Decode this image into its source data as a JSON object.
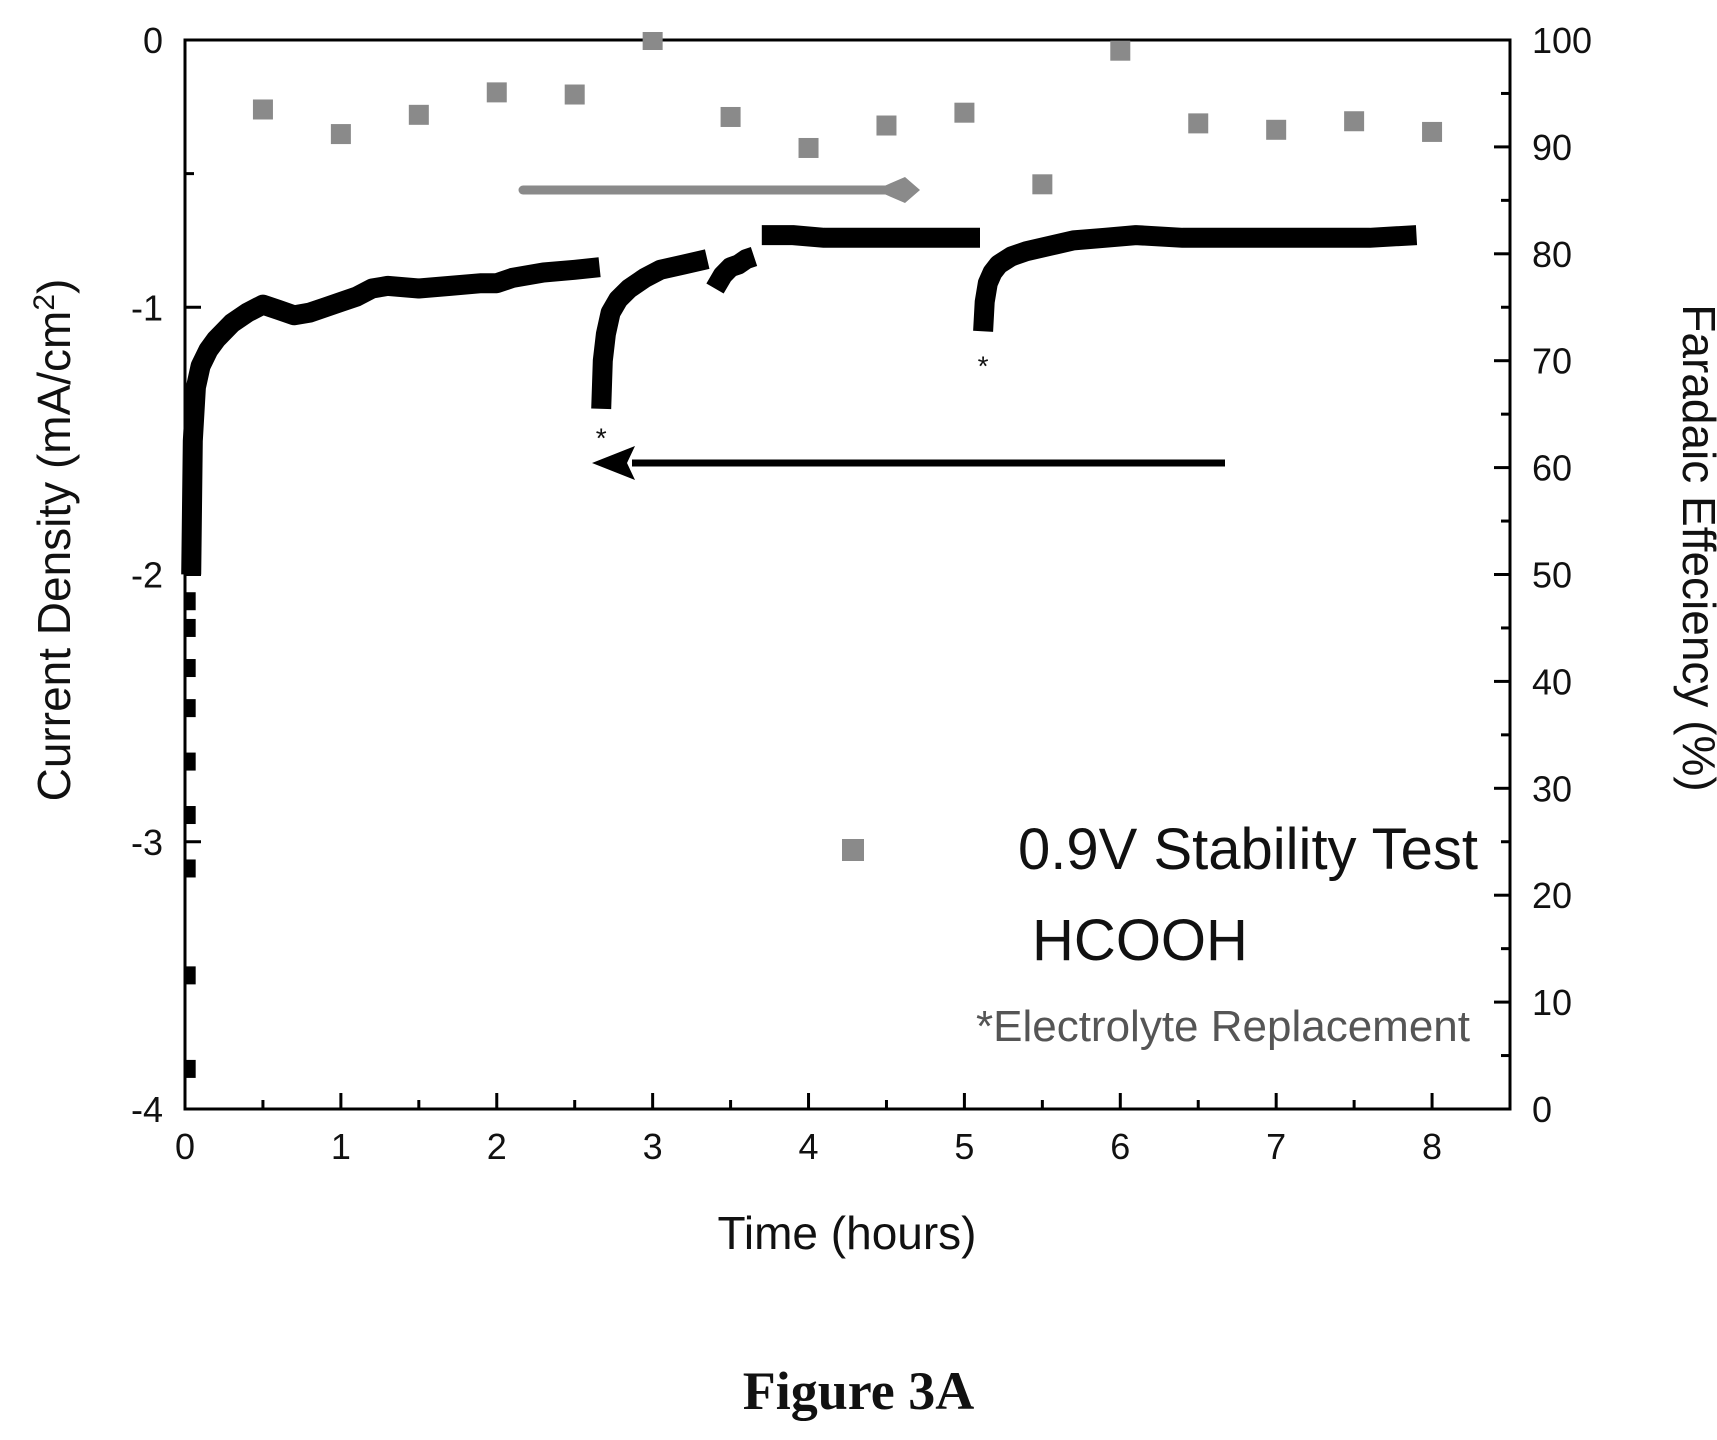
{
  "caption": "Figure 3A",
  "chart_data": {
    "type": "scatter",
    "xlabel": "Time (hours)",
    "ylabel": "Current Density (mA/cm²)",
    "ylabel_parts": {
      "main": "Current Density (mA/cm",
      "sup": "2",
      "end": ")"
    },
    "y2label": "Faradaic Effeciency (%)",
    "xlim": [
      0,
      8.5
    ],
    "ylim": [
      -4,
      0
    ],
    "y2lim": [
      0,
      100
    ],
    "x_ticks": [
      "0",
      "1",
      "2",
      "3",
      "4",
      "5",
      "6",
      "7",
      "8"
    ],
    "y_ticks": [
      "-4",
      "-3",
      "-2",
      "-1",
      "0"
    ],
    "y2_ticks": [
      "0",
      "10",
      "20",
      "30",
      "40",
      "50",
      "60",
      "70",
      "80",
      "90",
      "100"
    ],
    "legend": {
      "lines": [
        "0.9V Stability Test",
        "HCOOH"
      ],
      "placement": "lower-right"
    },
    "note": "*Electrolyte Replacement",
    "annotations": [
      {
        "text": "*",
        "x": 2.67,
        "y": -1.42
      },
      {
        "text": "*",
        "x": 5.12,
        "y": -1.15
      }
    ],
    "arrows": [
      {
        "series": "faradaic_efficiency",
        "direction": "right",
        "y2_value": 86
      },
      {
        "series": "current_density",
        "direction": "left",
        "y_value": -1.6
      }
    ],
    "series": [
      {
        "role": "faradaic_efficiency",
        "axis": "right",
        "marker": "square",
        "color": "#8a8a8a",
        "x": [
          0.5,
          1.0,
          1.5,
          2.0,
          2.5,
          3.0,
          3.5,
          4.0,
          4.5,
          5.0,
          5.5,
          6.0,
          6.5,
          7.0,
          7.5,
          8.0
        ],
        "y": [
          93.5,
          91.2,
          93.0,
          95.1,
          94.9,
          100.0,
          92.8,
          89.9,
          92.0,
          93.2,
          86.5,
          99.0,
          92.2,
          91.6,
          92.4,
          91.4
        ]
      },
      {
        "role": "current_density",
        "axis": "left",
        "color": "#000000",
        "segments": [
          {
            "x": [
              0.04,
              0.05,
              0.07,
              0.1,
              0.15,
              0.2,
              0.3,
              0.4,
              0.5,
              0.6,
              0.7,
              0.8,
              0.9,
              1.0,
              1.1,
              1.2,
              1.3,
              1.5,
              1.7,
              1.9,
              2.0,
              2.1,
              2.3,
              2.5,
              2.66
            ],
            "y": [
              -2.0,
              -1.5,
              -1.3,
              -1.22,
              -1.16,
              -1.12,
              -1.06,
              -1.02,
              -0.99,
              -1.01,
              -1.03,
              -1.02,
              -1.0,
              -0.98,
              -0.96,
              -0.93,
              -0.92,
              -0.93,
              -0.92,
              -0.91,
              -0.91,
              -0.89,
              -0.87,
              -0.86,
              -0.85
            ]
          },
          {
            "x": [
              2.67,
              2.68,
              2.7,
              2.73,
              2.78,
              2.85,
              2.95,
              3.05,
              3.2,
              3.35
            ],
            "y": [
              -1.38,
              -1.2,
              -1.1,
              -1.02,
              -0.97,
              -0.93,
              -0.89,
              -0.86,
              -0.84,
              -0.82
            ]
          },
          {
            "x": [
              3.4,
              3.45,
              3.5,
              3.55,
              3.6,
              3.65
            ],
            "y": [
              -0.93,
              -0.88,
              -0.85,
              -0.84,
              -0.82,
              -0.81
            ]
          },
          {
            "x": [
              3.7,
              3.9,
              4.1,
              4.3,
              4.5,
              4.7,
              4.9,
              5.1
            ],
            "y": [
              -0.73,
              -0.73,
              -0.74,
              -0.74,
              -0.74,
              -0.74,
              -0.74,
              -0.74
            ]
          },
          {
            "x": [
              5.12,
              5.13,
              5.15,
              5.18,
              5.22,
              5.3,
              5.4,
              5.55,
              5.7,
              5.9,
              6.1,
              6.4,
              6.7,
              7.0,
              7.3,
              7.6,
              7.9
            ],
            "y": [
              -1.09,
              -0.98,
              -0.91,
              -0.87,
              -0.84,
              -0.81,
              -0.79,
              -0.77,
              -0.75,
              -0.74,
              -0.73,
              -0.74,
              -0.74,
              -0.74,
              -0.74,
              -0.74,
              -0.73
            ]
          }
        ],
        "startup_points": {
          "x": [
            0.03,
            0.03,
            0.03,
            0.03,
            0.03,
            0.03,
            0.03,
            0.03,
            0.03
          ],
          "y": [
            -2.2,
            -2.35,
            -2.5,
            -2.7,
            -2.9,
            -3.1,
            -3.5,
            -3.85,
            -2.1
          ]
        }
      }
    ]
  }
}
